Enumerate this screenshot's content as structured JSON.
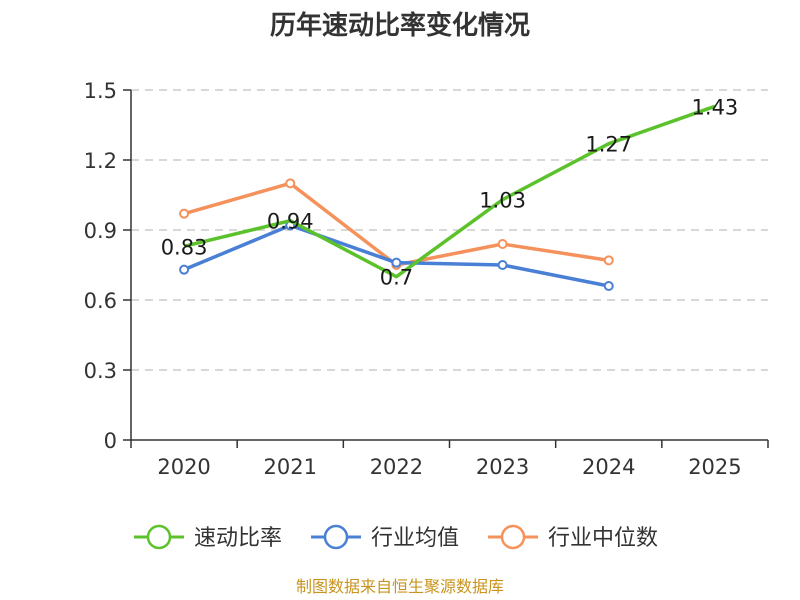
{
  "chart_data": {
    "type": "line",
    "title": "历年速动比率变化情况",
    "categories": [
      "2020",
      "2021",
      "2022",
      "2023",
      "2024",
      "2025"
    ],
    "y_ticks": [
      "0",
      "0.3",
      "0.6",
      "0.9",
      "1.2",
      "1.5"
    ],
    "ylim": [
      0,
      1.5
    ],
    "grid": true,
    "legend_position": "bottom",
    "series": [
      {
        "name": "速动比率",
        "color": "#5cc22c",
        "values": [
          0.83,
          0.94,
          0.7,
          1.03,
          1.27,
          1.43
        ],
        "labels": [
          "0.83",
          "0.94",
          "0.7",
          "1.03",
          "1.27",
          "1.43"
        ]
      },
      {
        "name": "行业均值",
        "color": "#4a7fd6",
        "values": [
          0.73,
          0.92,
          0.76,
          0.75,
          0.66,
          null
        ]
      },
      {
        "name": "行业中位数",
        "color": "#f5915b",
        "values": [
          0.97,
          1.1,
          0.75,
          0.84,
          0.77,
          null
        ]
      }
    ],
    "source": "制图数据来自恒生聚源数据库"
  }
}
